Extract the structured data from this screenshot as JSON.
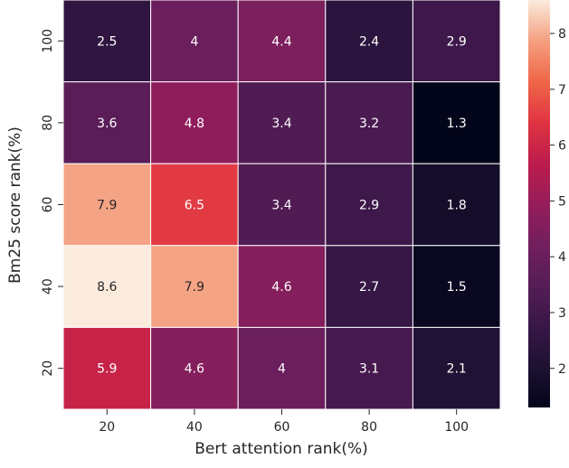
{
  "chart_data": {
    "type": "heatmap",
    "title": "",
    "xlabel": "Bert attention rank(%)",
    "ylabel": "Bm25 score rank(%)",
    "x_categories": [
      "20",
      "40",
      "60",
      "80",
      "100"
    ],
    "y_categories": [
      "100",
      "80",
      "60",
      "40",
      "20"
    ],
    "values": [
      [
        2.5,
        4,
        4.4,
        2.4,
        2.9
      ],
      [
        3.6,
        4.8,
        3.4,
        3.2,
        1.3
      ],
      [
        7.9,
        6.5,
        3.4,
        2.9,
        1.8
      ],
      [
        8.6,
        7.9,
        4.6,
        2.7,
        1.5
      ],
      [
        5.9,
        4.6,
        4,
        3.1,
        2.1
      ]
    ],
    "value_labels": [
      [
        "2.5",
        "4",
        "4.4",
        "2.4",
        "2.9"
      ],
      [
        "3.6",
        "4.8",
        "3.4",
        "3.2",
        "1.3"
      ],
      [
        "7.9",
        "6.5",
        "3.4",
        "2.9",
        "1.8"
      ],
      [
        "8.6",
        "7.9",
        "4.6",
        "2.7",
        "1.5"
      ],
      [
        "5.9",
        "4.6",
        "4",
        "3.1",
        "2.1"
      ]
    ],
    "colorbar": {
      "min": 1.3,
      "max": 8.6,
      "ticks": [
        "2",
        "3",
        "4",
        "5",
        "6",
        "7",
        "8"
      ],
      "colormap": "rocket"
    },
    "grid": false,
    "legend": "colorbar-right"
  }
}
